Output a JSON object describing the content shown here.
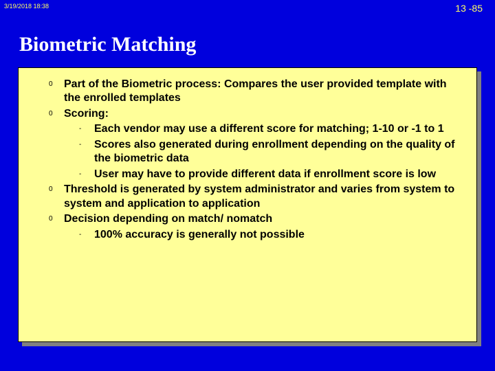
{
  "header": {
    "timestamp": "3/19/2018  18:38",
    "page_number": "13 -85"
  },
  "title": "Biometric Matching",
  "bullets": [
    {
      "text": "Part of the Biometric process: Compares the user provided template with the enrolled templates",
      "children": []
    },
    {
      "text": "Scoring:",
      "children": [
        {
          "text": "Each vendor may use a different score for matching; 1-10 or -1 to 1"
        },
        {
          "text": "Scores also generated during enrollment depending on the quality of the biometric data"
        },
        {
          "text": "User may have to provide different data if enrollment score is low"
        }
      ]
    },
    {
      "text": "Threshold is generated by system administrator and varies from  system to system and application to application",
      "children": []
    },
    {
      "text": "Decision depending on match/ nomatch",
      "children": [
        {
          "text": "100% accuracy is generally not possible"
        }
      ]
    }
  ],
  "colors": {
    "background": "#0000dd",
    "card_bg": "#ffff99",
    "title": "#ffffff",
    "header_text": "#ffff66",
    "body_text": "#000000",
    "shadow": "#808080"
  }
}
